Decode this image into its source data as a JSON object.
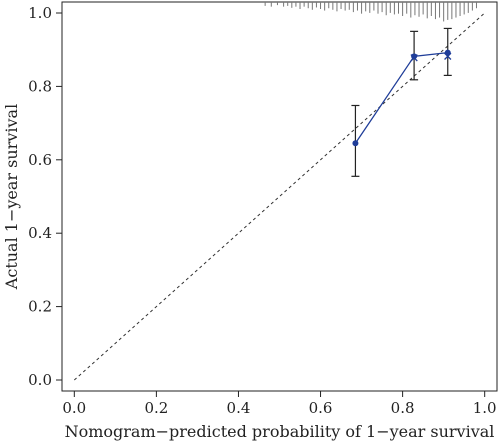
{
  "chart_data": {
    "type": "line",
    "title": "",
    "xlabel": "Nomogram−predicted probability of 1−year survival",
    "ylabel": "Actual 1−year survival",
    "xlim": [
      -0.03,
      1.03
    ],
    "ylim": [
      -0.03,
      1.03
    ],
    "x_ticks": [
      0.0,
      0.2,
      0.4,
      0.6,
      0.8,
      1.0
    ],
    "x_tick_labels": [
      "0.0",
      "0.2",
      "0.4",
      "0.6",
      "0.8",
      "1.0"
    ],
    "y_ticks": [
      0.0,
      0.2,
      0.4,
      0.6,
      0.8,
      1.0
    ],
    "y_tick_labels": [
      "0.0",
      "0.2",
      "0.4",
      "0.6",
      "0.8",
      "1.0"
    ],
    "grid": false,
    "reference_line": {
      "style": "dashed",
      "from": [
        0,
        0
      ],
      "to": [
        1,
        1
      ]
    },
    "series": [
      {
        "type": "line-with-points",
        "color": "#1f3d99",
        "points": [
          {
            "x": 0.685,
            "y": 0.645,
            "low": 0.555,
            "high": 0.748
          },
          {
            "x": 0.828,
            "y": 0.882,
            "low": 0.818,
            "high": 0.95
          },
          {
            "x": 0.91,
            "y": 0.892,
            "low": 0.83,
            "high": 0.958
          }
        ]
      },
      {
        "type": "points",
        "marker": "x",
        "color": "#1f3d99",
        "points": [
          {
            "x": 0.828,
            "y": 0.878
          },
          {
            "x": 0.91,
            "y": 0.882
          }
        ]
      }
    ],
    "rug": {
      "color": "#777777",
      "x": [
        0.465,
        0.48,
        0.495,
        0.51,
        0.52,
        0.53,
        0.54,
        0.55,
        0.56,
        0.57,
        0.58,
        0.59,
        0.6,
        0.61,
        0.62,
        0.63,
        0.64,
        0.65,
        0.66,
        0.67,
        0.68,
        0.69,
        0.7,
        0.71,
        0.72,
        0.73,
        0.74,
        0.75,
        0.76,
        0.77,
        0.78,
        0.79,
        0.8,
        0.81,
        0.82,
        0.83,
        0.84,
        0.85,
        0.86,
        0.87,
        0.88,
        0.89,
        0.9,
        0.91,
        0.92,
        0.93,
        0.94,
        0.95,
        0.96,
        0.97,
        0.98
      ],
      "h": [
        0.01,
        0.012,
        0.008,
        0.012,
        0.01,
        0.015,
        0.012,
        0.018,
        0.012,
        0.016,
        0.02,
        0.014,
        0.018,
        0.022,
        0.016,
        0.02,
        0.024,
        0.018,
        0.022,
        0.02,
        0.026,
        0.022,
        0.03,
        0.024,
        0.028,
        0.022,
        0.03,
        0.026,
        0.034,
        0.028,
        0.032,
        0.03,
        0.036,
        0.03,
        0.04,
        0.034,
        0.038,
        0.032,
        0.042,
        0.036,
        0.044,
        0.04,
        0.05,
        0.046,
        0.044,
        0.04,
        0.036,
        0.032,
        0.028,
        0.022,
        0.016
      ]
    }
  }
}
